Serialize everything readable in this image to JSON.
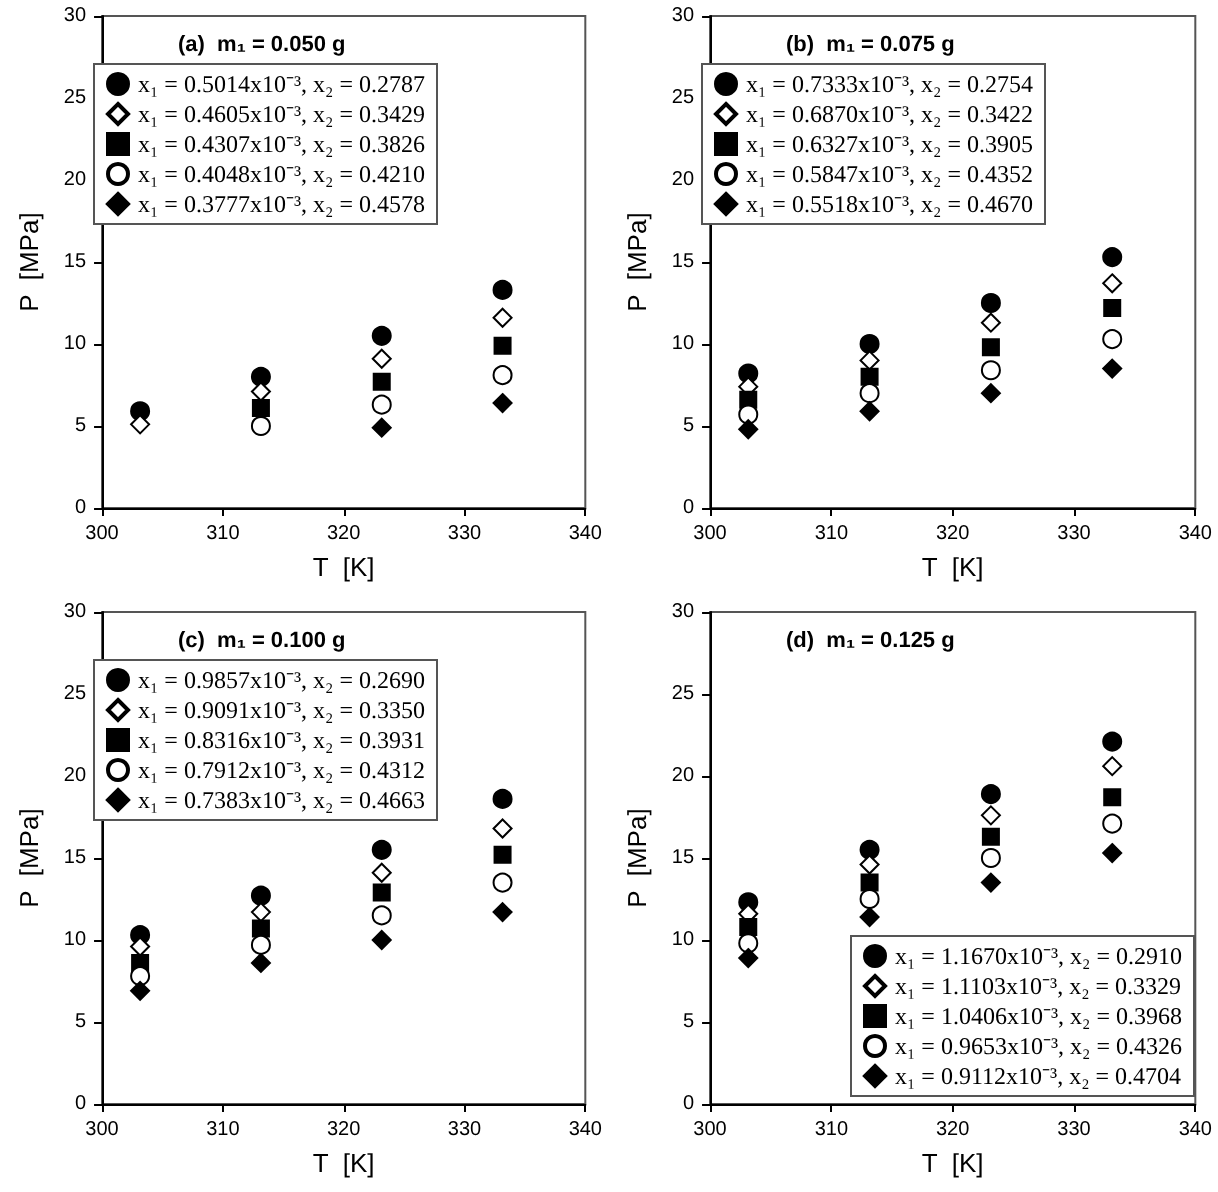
{
  "chart_data": [
    {
      "type": "scatter",
      "title": "(a)  m₁ = 0.050 g",
      "xlabel": "T  [K]",
      "ylabel": "P  [MPa]",
      "x": [
        303.15,
        313.15,
        323.15,
        333.15
      ],
      "xlim": [
        300,
        340
      ],
      "xticks": [
        300,
        310,
        320,
        330,
        340
      ],
      "ylim": [
        0,
        30
      ],
      "yticks": [
        0,
        5,
        10,
        15,
        20,
        25,
        30
      ],
      "grid": false,
      "legend": "top left",
      "series": [
        {
          "name": "x₁ = 0.5014x10⁻³, x₂ = 0.2787",
          "color": "#000000",
          "marker": "circle",
          "values": [
            5.9,
            8.0,
            10.5,
            13.3
          ]
        },
        {
          "name": "x₁ = 0.4605x10⁻³, x₂ = 0.3429",
          "color": "#ffffff",
          "marker": "diamond",
          "values": [
            5.1,
            7.1,
            9.1,
            11.6
          ]
        },
        {
          "name": "x₁ = 0.4307x10⁻³, x₂ = 0.3826",
          "color": "#000000",
          "marker": "square",
          "values": [
            null,
            6.1,
            7.7,
            9.9
          ]
        },
        {
          "name": "x₁ = 0.4048x10⁻³, x₂ = 0.4210",
          "color": "#ffffff",
          "marker": "circle",
          "values": [
            null,
            5.0,
            6.3,
            8.1
          ]
        },
        {
          "name": "x₁ = 0.3777x10⁻³, x₂ = 0.4578",
          "color": "#000000",
          "marker": "diamond",
          "values": [
            null,
            null,
            4.9,
            6.4
          ]
        }
      ]
    },
    {
      "type": "scatter",
      "title": "(b)  m₁ = 0.075 g",
      "xlabel": "T  [K]",
      "ylabel": "P  [MPa]",
      "x": [
        303.15,
        313.15,
        323.15,
        333.15
      ],
      "xlim": [
        300,
        340
      ],
      "xticks": [
        300,
        310,
        320,
        330,
        340
      ],
      "ylim": [
        0,
        30
      ],
      "yticks": [
        0,
        5,
        10,
        15,
        20,
        25,
        30
      ],
      "grid": false,
      "legend": "top left",
      "series": [
        {
          "name": "x₁ = 0.7333x10⁻³, x₂ = 0.2754",
          "color": "#000000",
          "marker": "circle",
          "values": [
            8.2,
            10.0,
            12.5,
            15.3
          ]
        },
        {
          "name": "x₁ = 0.6870x10⁻³, x₂ = 0.3422",
          "color": "#ffffff",
          "marker": "diamond",
          "values": [
            7.4,
            9.0,
            11.3,
            13.7
          ]
        },
        {
          "name": "x₁ = 0.6327x10⁻³, x₂ = 0.3905",
          "color": "#000000",
          "marker": "square",
          "values": [
            6.6,
            8.0,
            9.8,
            12.2
          ]
        },
        {
          "name": "x₁ = 0.5847x10⁻³, x₂ = 0.4352",
          "color": "#ffffff",
          "marker": "circle",
          "values": [
            5.7,
            7.0,
            8.4,
            10.3
          ]
        },
        {
          "name": "x₁ = 0.5518x10⁻³, x₂ = 0.4670",
          "color": "#000000",
          "marker": "diamond",
          "values": [
            4.8,
            5.9,
            7.0,
            8.5
          ]
        }
      ]
    },
    {
      "type": "scatter",
      "title": "(c)  m₁ = 0.100 g",
      "xlabel": "T  [K]",
      "ylabel": "P  [MPa]",
      "x": [
        303.15,
        313.15,
        323.15,
        333.15
      ],
      "xlim": [
        300,
        340
      ],
      "xticks": [
        300,
        310,
        320,
        330,
        340
      ],
      "ylim": [
        0,
        30
      ],
      "yticks": [
        0,
        5,
        10,
        15,
        20,
        25,
        30
      ],
      "grid": false,
      "legend": "top left",
      "series": [
        {
          "name": "x₁ = 0.9857x10⁻³, x₂ = 0.2690",
          "color": "#000000",
          "marker": "circle",
          "values": [
            10.3,
            12.7,
            15.5,
            18.6
          ]
        },
        {
          "name": "x₁ = 0.9091x10⁻³, x₂ = 0.3350",
          "color": "#ffffff",
          "marker": "diamond",
          "values": [
            9.6,
            11.7,
            14.1,
            16.8
          ]
        },
        {
          "name": "x₁ = 0.8316x10⁻³, x₂ = 0.3931",
          "color": "#000000",
          "marker": "square",
          "values": [
            8.6,
            10.7,
            12.9,
            15.2
          ]
        },
        {
          "name": "x₁ = 0.7912x10⁻³, x₂ = 0.4312",
          "color": "#ffffff",
          "marker": "circle",
          "values": [
            7.8,
            9.7,
            11.5,
            13.5
          ]
        },
        {
          "name": "x₁ = 0.7383x10⁻³, x₂ = 0.4663",
          "color": "#000000",
          "marker": "diamond",
          "values": [
            6.9,
            8.6,
            10.0,
            11.7
          ]
        }
      ]
    },
    {
      "type": "scatter",
      "title": "(d)  m₁ = 0.125 g",
      "xlabel": "T  [K]",
      "ylabel": "P  [MPa]",
      "x": [
        303.15,
        313.15,
        323.15,
        333.15
      ],
      "xlim": [
        300,
        340
      ],
      "xticks": [
        300,
        310,
        320,
        330,
        340
      ],
      "ylim": [
        0,
        30
      ],
      "yticks": [
        0,
        5,
        10,
        15,
        20,
        25,
        30
      ],
      "grid": false,
      "legend": "bottom right",
      "series": [
        {
          "name": "x₁ = 1.1670x10⁻³, x₂ = 0.2910",
          "color": "#000000",
          "marker": "circle",
          "values": [
            12.3,
            15.5,
            18.9,
            22.1
          ]
        },
        {
          "name": "x₁ = 1.1103x10⁻³, x₂ = 0.3329",
          "color": "#ffffff",
          "marker": "diamond",
          "values": [
            11.6,
            14.6,
            17.6,
            20.6
          ]
        },
        {
          "name": "x₁ = 1.0406x10⁻³, x₂ = 0.3968",
          "color": "#000000",
          "marker": "square",
          "values": [
            10.8,
            13.5,
            16.3,
            18.7
          ]
        },
        {
          "name": "x₁ = 0.9653x10⁻³, x₂ = 0.4326",
          "color": "#ffffff",
          "marker": "circle",
          "values": [
            9.8,
            12.5,
            15.0,
            17.1
          ]
        },
        {
          "name": "x₁ = 0.9112x10⁻³, x₂ = 0.4704",
          "color": "#000000",
          "marker": "diamond",
          "values": [
            8.9,
            11.4,
            13.5,
            15.3
          ]
        }
      ]
    }
  ]
}
